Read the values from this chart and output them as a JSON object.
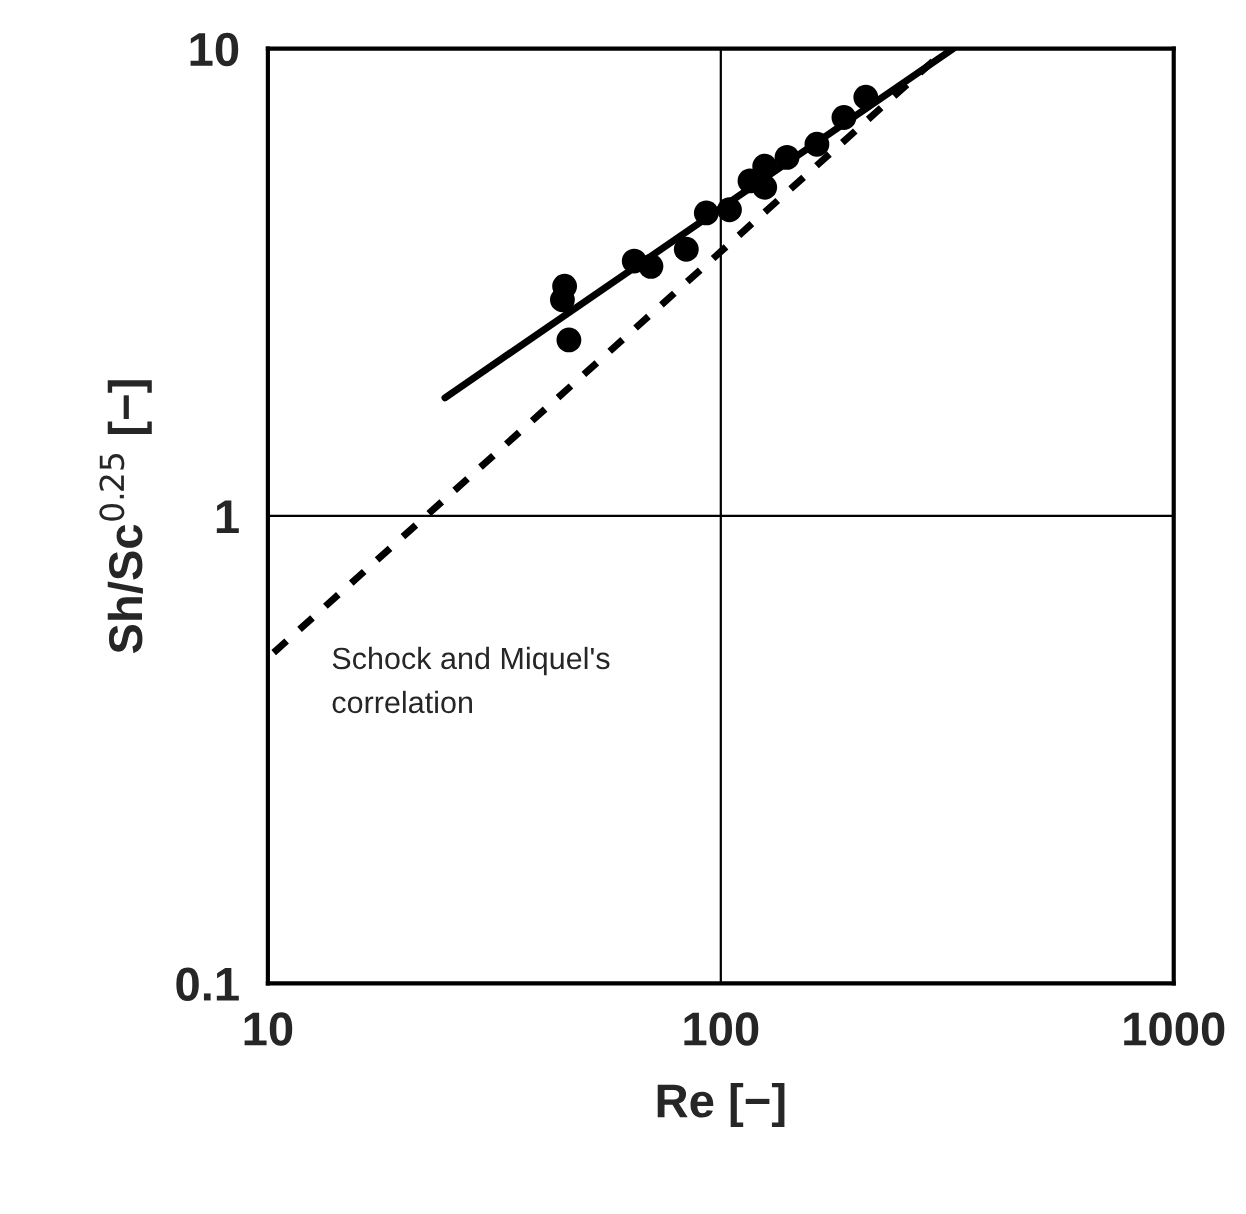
{
  "chart_data": {
    "type": "scatter",
    "xlabel": "Re [−]",
    "ylabel": "Sh/Sc$^{0.25}$ [−]",
    "log": "xy",
    "xlim": [
      10,
      1000
    ],
    "ylim": [
      0.1,
      10
    ],
    "xticks": [
      10,
      100,
      1000
    ],
    "yticks": [
      0.1,
      1,
      10
    ],
    "grid": true,
    "legend": false,
    "series": [
      {
        "marker": "circle",
        "color": "#000000",
        "x": [
          45.2,
          44.7,
          46.2,
          64.4,
          70.1,
          83.9,
          92.9,
          104.5,
          116,
          125,
          125,
          140,
          163,
          187,
          209
        ],
        "values": [
          3.1,
          2.9,
          2.38,
          3.51,
          3.42,
          3.72,
          4.45,
          4.52,
          5.21,
          5.05,
          5.6,
          5.85,
          6.24,
          7.12,
          7.87
        ]
      },
      {
        "type": "line",
        "line_style": "solid",
        "marker": "none",
        "color": "#000000",
        "x": [
          24.6,
          326
        ],
        "values": [
          1.79,
          10
        ]
      },
      {
        "type": "line",
        "line_style": "dashed",
        "marker": "none",
        "color": "#000000",
        "x": [
          10.3,
          316
        ],
        "values": [
          0.51,
          10
        ]
      }
    ],
    "annotations": [
      "Schock and Miquel's\ncorrelation"
    ]
  }
}
